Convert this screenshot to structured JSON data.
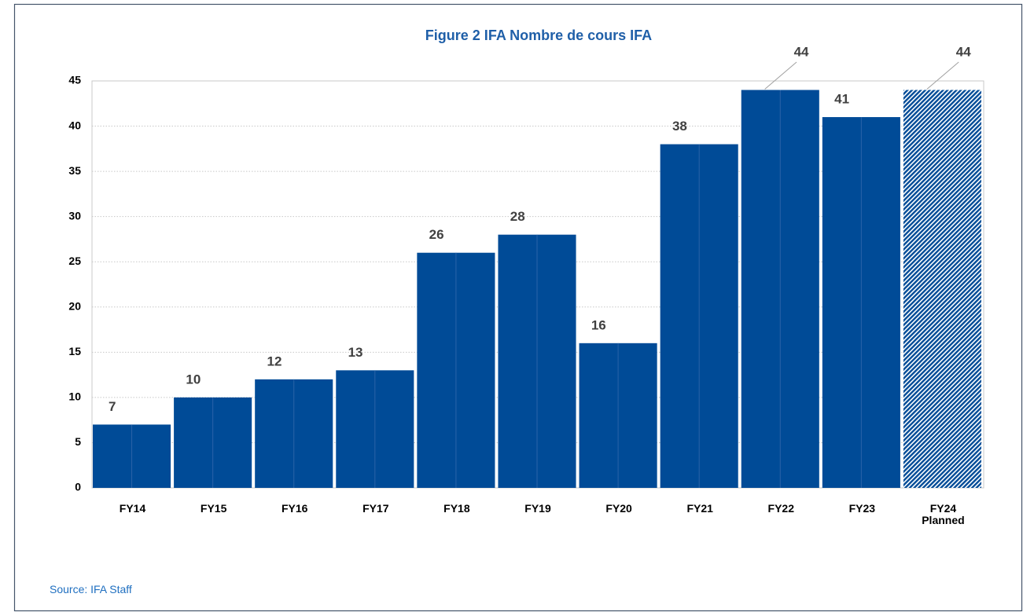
{
  "chart_data": {
    "type": "bar",
    "title": "Figure 2 IFA Nombre de cours IFA",
    "categories": [
      "FY14",
      "FY15",
      "FY16",
      "FY17",
      "FY18",
      "FY19",
      "FY20",
      "FY21",
      "FY22",
      "FY23",
      "FY24 Planned"
    ],
    "values": [
      7,
      10,
      12,
      13,
      26,
      28,
      16,
      38,
      44,
      41,
      44
    ],
    "pattern": [
      null,
      null,
      null,
      null,
      null,
      null,
      null,
      null,
      null,
      null,
      "hatch"
    ],
    "color": "#004b97",
    "ylim": [
      0,
      45
    ],
    "yticks": [
      0,
      5,
      10,
      15,
      20,
      25,
      30,
      35,
      40,
      45
    ],
    "grid": true,
    "source": "Source: IFA Staff"
  }
}
